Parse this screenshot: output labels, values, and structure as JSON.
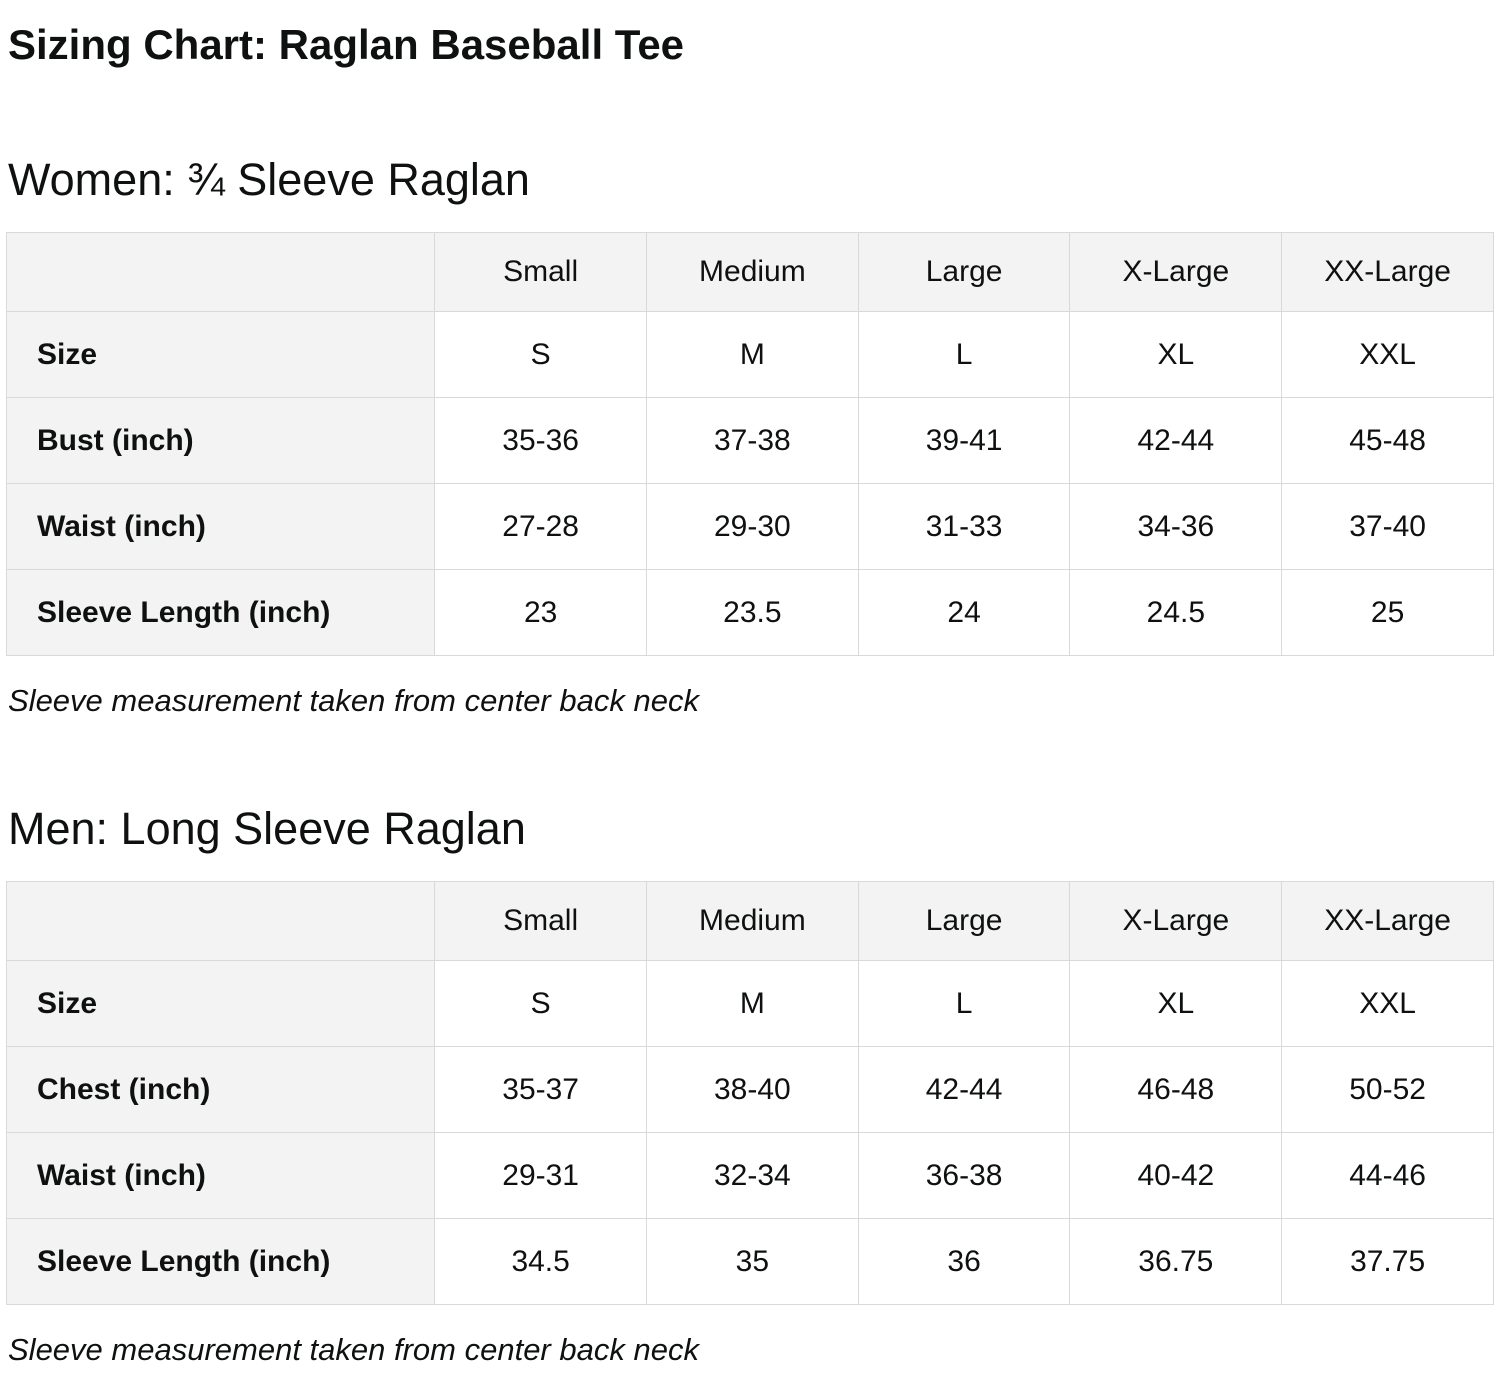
{
  "page": {
    "title": "Sizing Chart: Raglan Baseball Tee"
  },
  "sections": [
    {
      "heading": "Women: ¾ Sleeve Raglan",
      "note": "Sleeve measurement taken from center back neck",
      "table": {
        "columns": [
          "Small",
          "Medium",
          "Large",
          "X-Large",
          "XX-Large"
        ],
        "rows": [
          {
            "label": "Size",
            "values": [
              "S",
              "M",
              "L",
              "XL",
              "XXL"
            ]
          },
          {
            "label": "Bust (inch)",
            "values": [
              "35-36",
              "37-38",
              "39-41",
              "42-44",
              "45-48"
            ]
          },
          {
            "label": "Waist (inch)",
            "values": [
              "27-28",
              "29-30",
              "31-33",
              "34-36",
              "37-40"
            ]
          },
          {
            "label": "Sleeve Length (inch)",
            "values": [
              "23",
              "23.5",
              "24",
              "24.5",
              "25"
            ]
          }
        ]
      }
    },
    {
      "heading": "Men: Long Sleeve Raglan",
      "note": "Sleeve measurement taken from center back neck",
      "table": {
        "columns": [
          "Small",
          "Medium",
          "Large",
          "X-Large",
          "XX-Large"
        ],
        "rows": [
          {
            "label": "Size",
            "values": [
              "S",
              "M",
              "L",
              "XL",
              "XXL"
            ]
          },
          {
            "label": "Chest (inch)",
            "values": [
              "35-37",
              "38-40",
              "42-44",
              "46-48",
              "50-52"
            ]
          },
          {
            "label": "Waist (inch)",
            "values": [
              "29-31",
              "32-34",
              "36-38",
              "40-42",
              "44-46"
            ]
          },
          {
            "label": "Sleeve Length (inch)",
            "values": [
              "34.5",
              "35",
              "36",
              "36.75",
              "37.75"
            ]
          }
        ]
      }
    }
  ]
}
